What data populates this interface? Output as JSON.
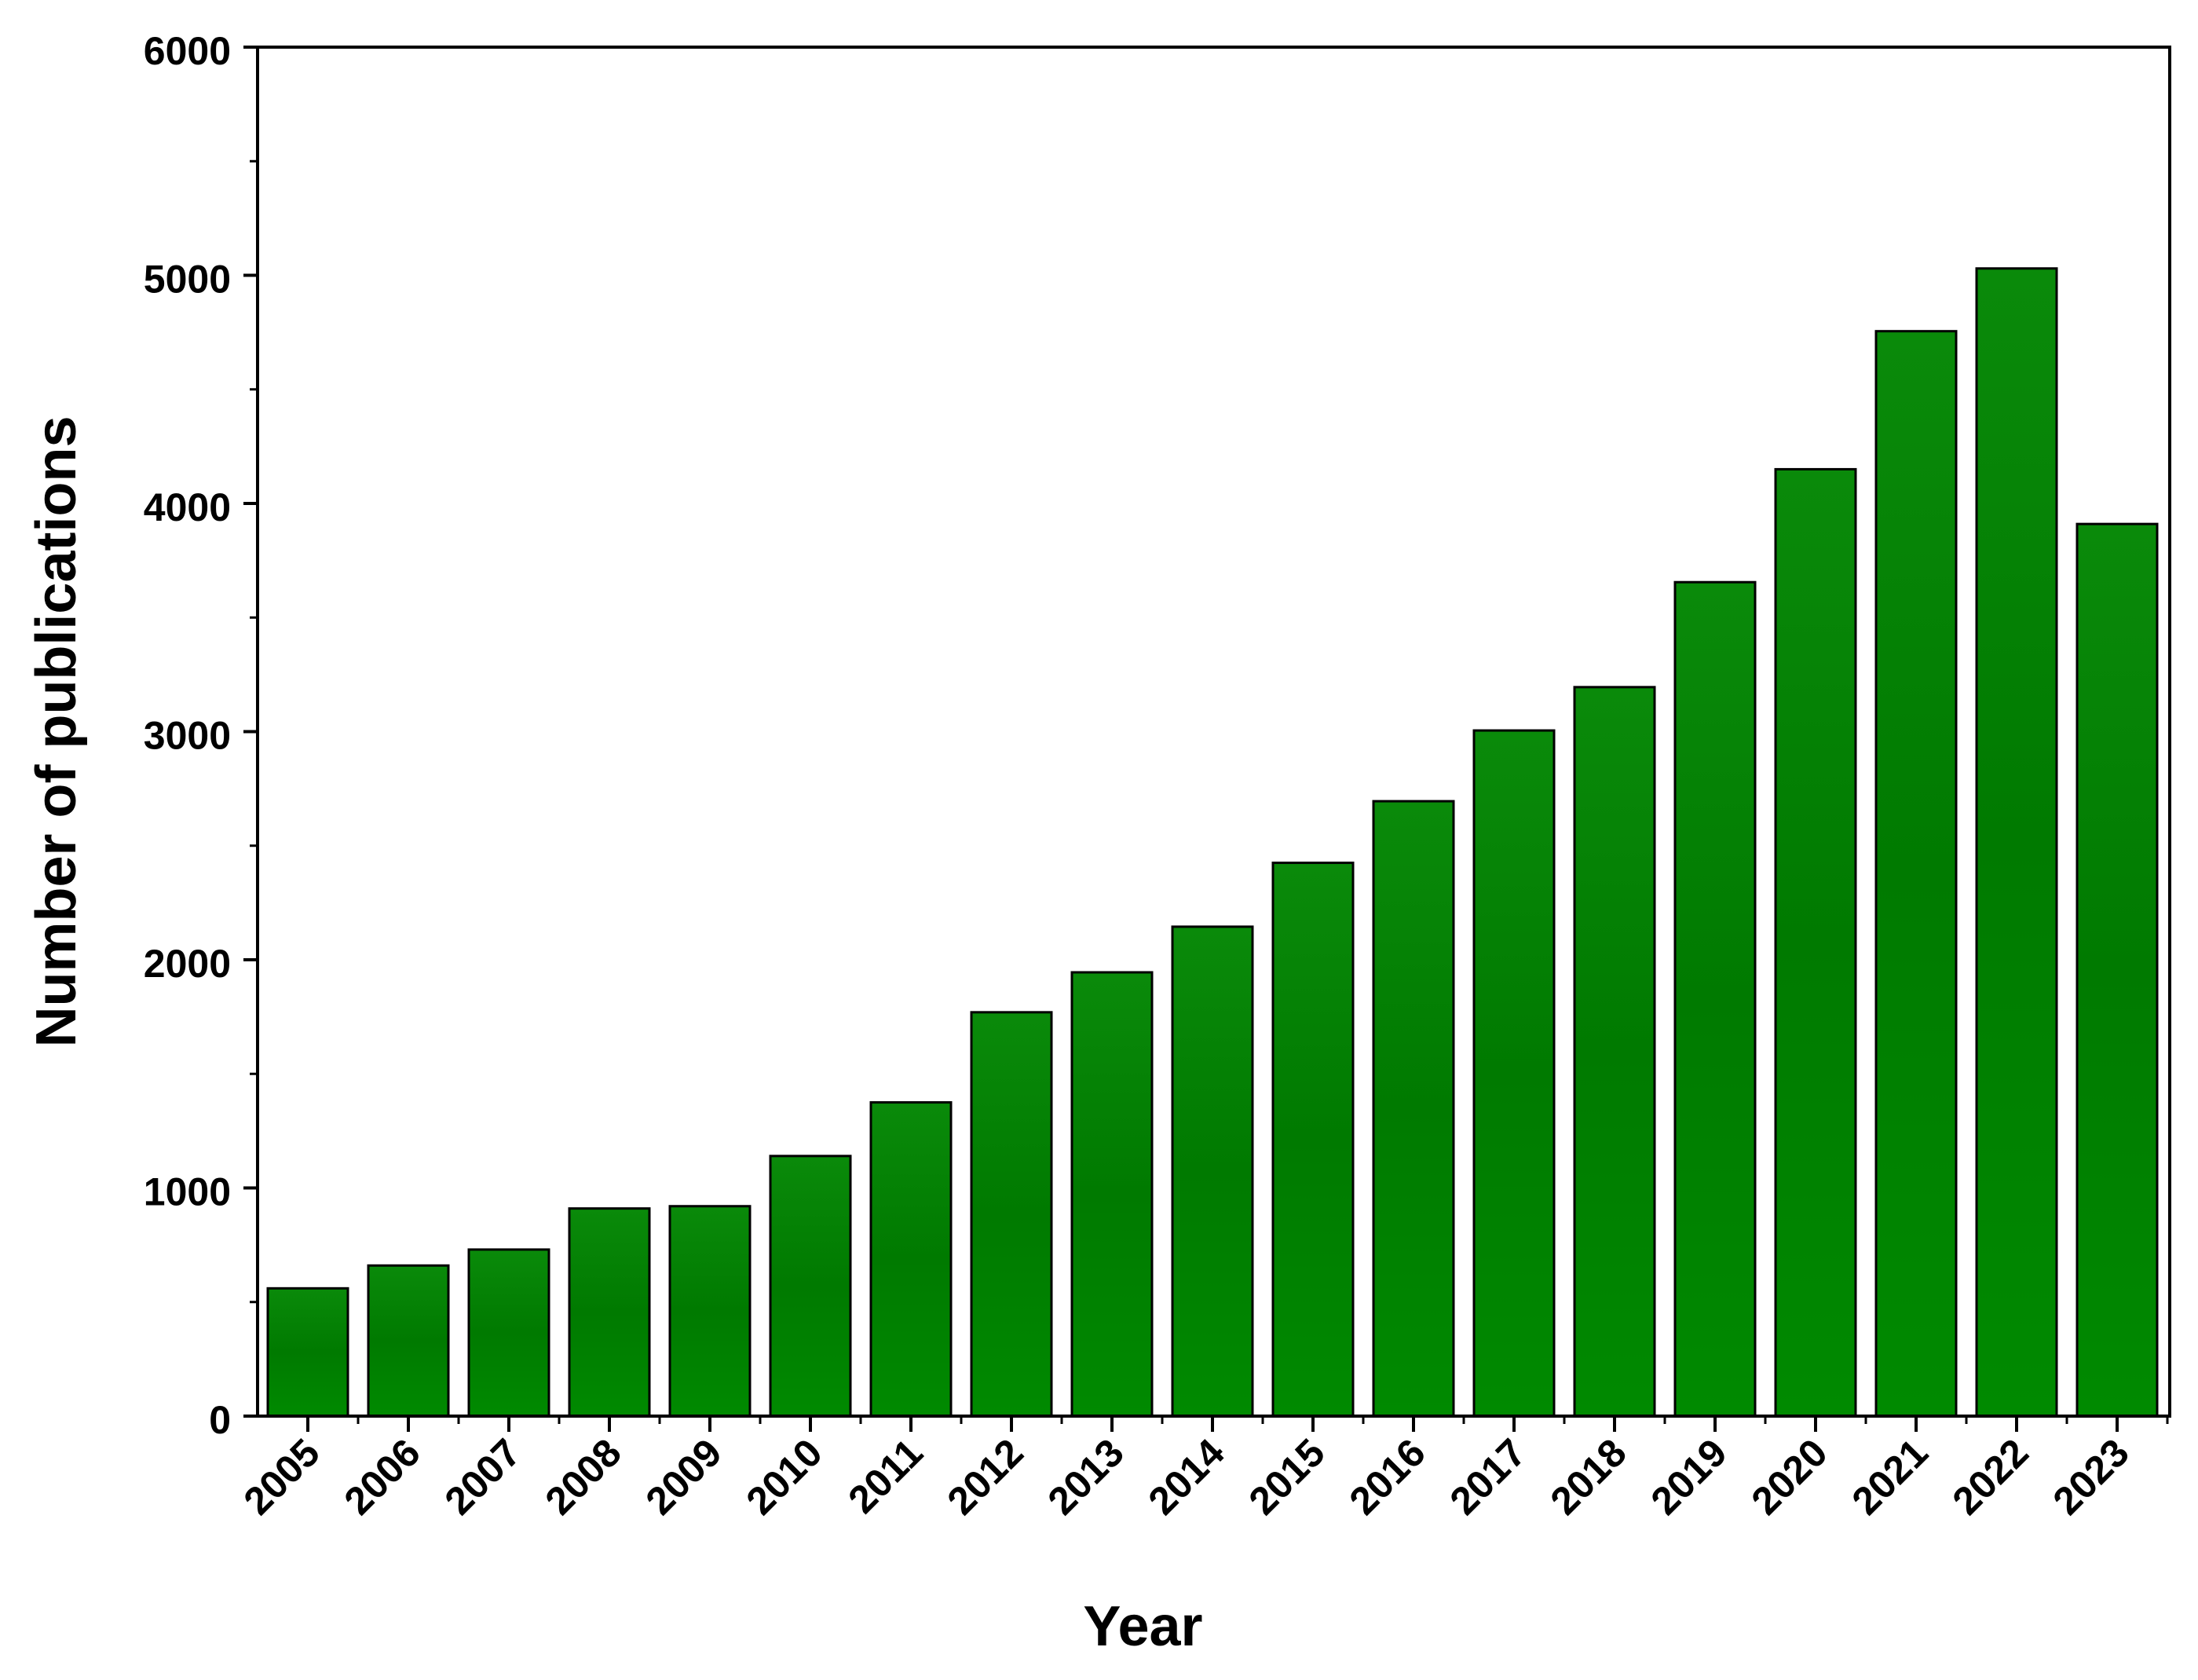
{
  "chart_data": {
    "type": "bar",
    "title": "",
    "xlabel": "Year",
    "ylabel": "Number of publications",
    "categories": [
      "2005",
      "2006",
      "2007",
      "2008",
      "2009",
      "2010",
      "2011",
      "2012",
      "2013",
      "2014",
      "2015",
      "2016",
      "2017",
      "2018",
      "2019",
      "2020",
      "2021",
      "2022",
      "2023"
    ],
    "values": [
      560,
      660,
      730,
      910,
      920,
      1140,
      1375,
      1770,
      1945,
      2145,
      2425,
      2695,
      3005,
      3195,
      3655,
      4150,
      4755,
      5030,
      3910
    ],
    "ylim": [
      0,
      6000
    ],
    "yticks": [
      "0",
      "1000",
      "2000",
      "3000",
      "4000",
      "5000",
      "6000"
    ],
    "grid": false,
    "legend": "none",
    "bar_color": "#008000",
    "bar_edge_color": "#000000"
  }
}
